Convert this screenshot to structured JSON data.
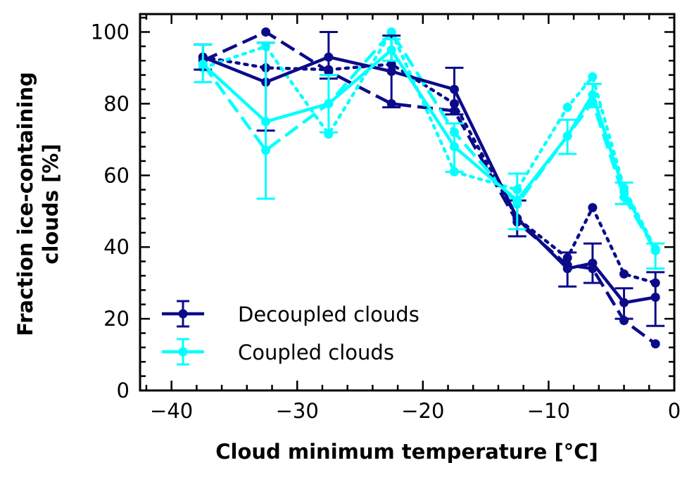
{
  "chart_data": {
    "type": "line",
    "xlabel": "Cloud minimum temperature [°C]",
    "ylabel_lines": [
      "Fraction ice-containing",
      "clouds [%]"
    ],
    "xlim": [
      -42.5,
      0
    ],
    "ylim": [
      0,
      105
    ],
    "x_ticks": [
      -40,
      -30,
      -20,
      -10,
      0
    ],
    "x_tick_labels": [
      "−40",
      "−30",
      "−20",
      "−10",
      "0"
    ],
    "y_ticks": [
      0,
      20,
      40,
      60,
      80,
      100
    ],
    "y_tick_labels": [
      "0",
      "20",
      "40",
      "60",
      "80",
      "100"
    ],
    "legend_position": "lower-left",
    "x": [
      -37.5,
      -32.5,
      -27.5,
      -22.5,
      -17.5,
      -12.5,
      -8.5,
      -6.5,
      -4,
      -1.5
    ],
    "series": [
      {
        "name": "Decoupled clouds",
        "color": "#0b0b8a",
        "style": "solid",
        "values": [
          93,
          86,
          93,
          89,
          84,
          48,
          34,
          35.5,
          24.5,
          26
        ],
        "error_low": [
          89.5,
          72.5,
          87,
          79,
          77,
          43,
          29,
          30,
          20,
          18
        ],
        "error_high": [
          96.5,
          97,
          100,
          99,
          90,
          53,
          38.5,
          41,
          28.5,
          33
        ]
      },
      {
        "name": "Coupled clouds",
        "color": "#00ffff",
        "style": "solid",
        "values": [
          91,
          75,
          80,
          95,
          68,
          53,
          71,
          82.5,
          55.5,
          39
        ],
        "error_low": [
          86,
          53.5,
          72,
          92,
          61,
          45,
          66,
          79,
          52,
          34
        ],
        "error_high": [
          96.5,
          97,
          88,
          98,
          74.5,
          60.5,
          75.5,
          85.5,
          58,
          41
        ]
      }
    ],
    "extra_lines": [
      {
        "color": "#0b0b8a",
        "style": "dashed",
        "values": [
          92,
          100,
          89,
          80,
          78,
          47,
          35,
          34,
          19.5,
          13
        ]
      },
      {
        "color": "#0b0b8a",
        "style": "dotted",
        "values": [
          93,
          90,
          89.5,
          91,
          80,
          48,
          37,
          51,
          32.5,
          30
        ]
      },
      {
        "color": "#00ffff",
        "style": "dashed",
        "values": [
          91,
          67,
          80,
          100,
          72,
          52,
          71,
          80.5,
          54,
          39
        ]
      },
      {
        "color": "#00ffff",
        "style": "dotted",
        "values": [
          90,
          96,
          71.5,
          100,
          61,
          56,
          79,
          87.5,
          56.5,
          39.5
        ]
      }
    ]
  }
}
